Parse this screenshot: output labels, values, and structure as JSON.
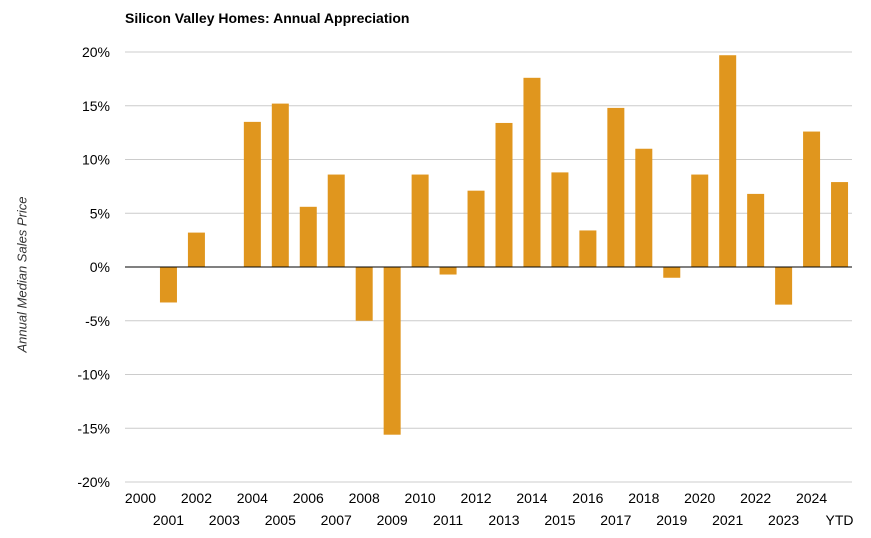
{
  "chart_data": {
    "type": "bar",
    "title": "Silicon Valley Homes: Annual Appreciation",
    "xlabel": "",
    "ylabel": "Annual Median Sales Price",
    "categories": [
      "2000",
      "2001",
      "2002",
      "2003",
      "2004",
      "2005",
      "2006",
      "2007",
      "2008",
      "2009",
      "2010",
      "2011",
      "2012",
      "2013",
      "2014",
      "2015",
      "2016",
      "2017",
      "2018",
      "2019",
      "2020",
      "2021",
      "2022",
      "2023",
      "2024",
      "YTD"
    ],
    "values": [
      0,
      -3.3,
      3.2,
      0,
      13.5,
      15.2,
      5.6,
      8.6,
      -5.0,
      -15.6,
      8.6,
      -0.7,
      7.1,
      13.4,
      17.6,
      8.8,
      3.4,
      14.8,
      11.0,
      -1.0,
      8.6,
      19.7,
      6.8,
      -3.5,
      12.6,
      7.9
    ],
    "ylim": [
      -20,
      20
    ],
    "yticks": [
      -20,
      -15,
      -10,
      -5,
      0,
      5,
      10,
      15,
      20
    ],
    "ytick_labels": [
      "-20%",
      "-15%",
      "-10%",
      "-5%",
      "0%",
      "5%",
      "10%",
      "15%",
      "20%"
    ],
    "grid": true,
    "legend": "none",
    "bar_color": "#E0961E"
  }
}
